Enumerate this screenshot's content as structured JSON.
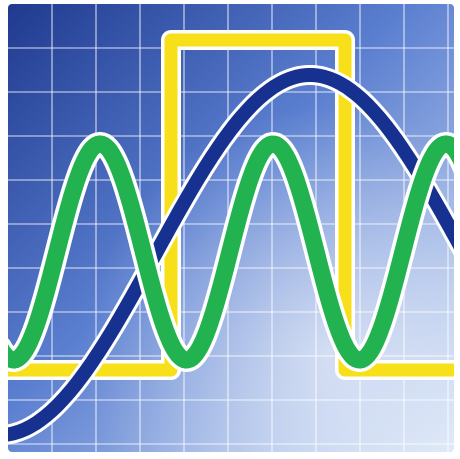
{
  "icon": {
    "semantic": "oscilloscope-waveform-icon",
    "colors": {
      "frame": "#ffffff",
      "background_dark": "#1f3a8f",
      "background_mid": "#5b7fd0",
      "background_light": "#d7e4f7",
      "grid_lines": "#ffffff",
      "square_wave": "#f7df1a",
      "sine_wave": "#22b24f",
      "slow_curve": "#16318f",
      "curve_outline": "#ffffff"
    },
    "waveforms": [
      {
        "name": "square-wave",
        "color_key": "square_wave"
      },
      {
        "name": "sine-wave",
        "color_key": "sine_wave"
      },
      {
        "name": "slow-curve",
        "color_key": "slow_curve"
      }
    ]
  }
}
